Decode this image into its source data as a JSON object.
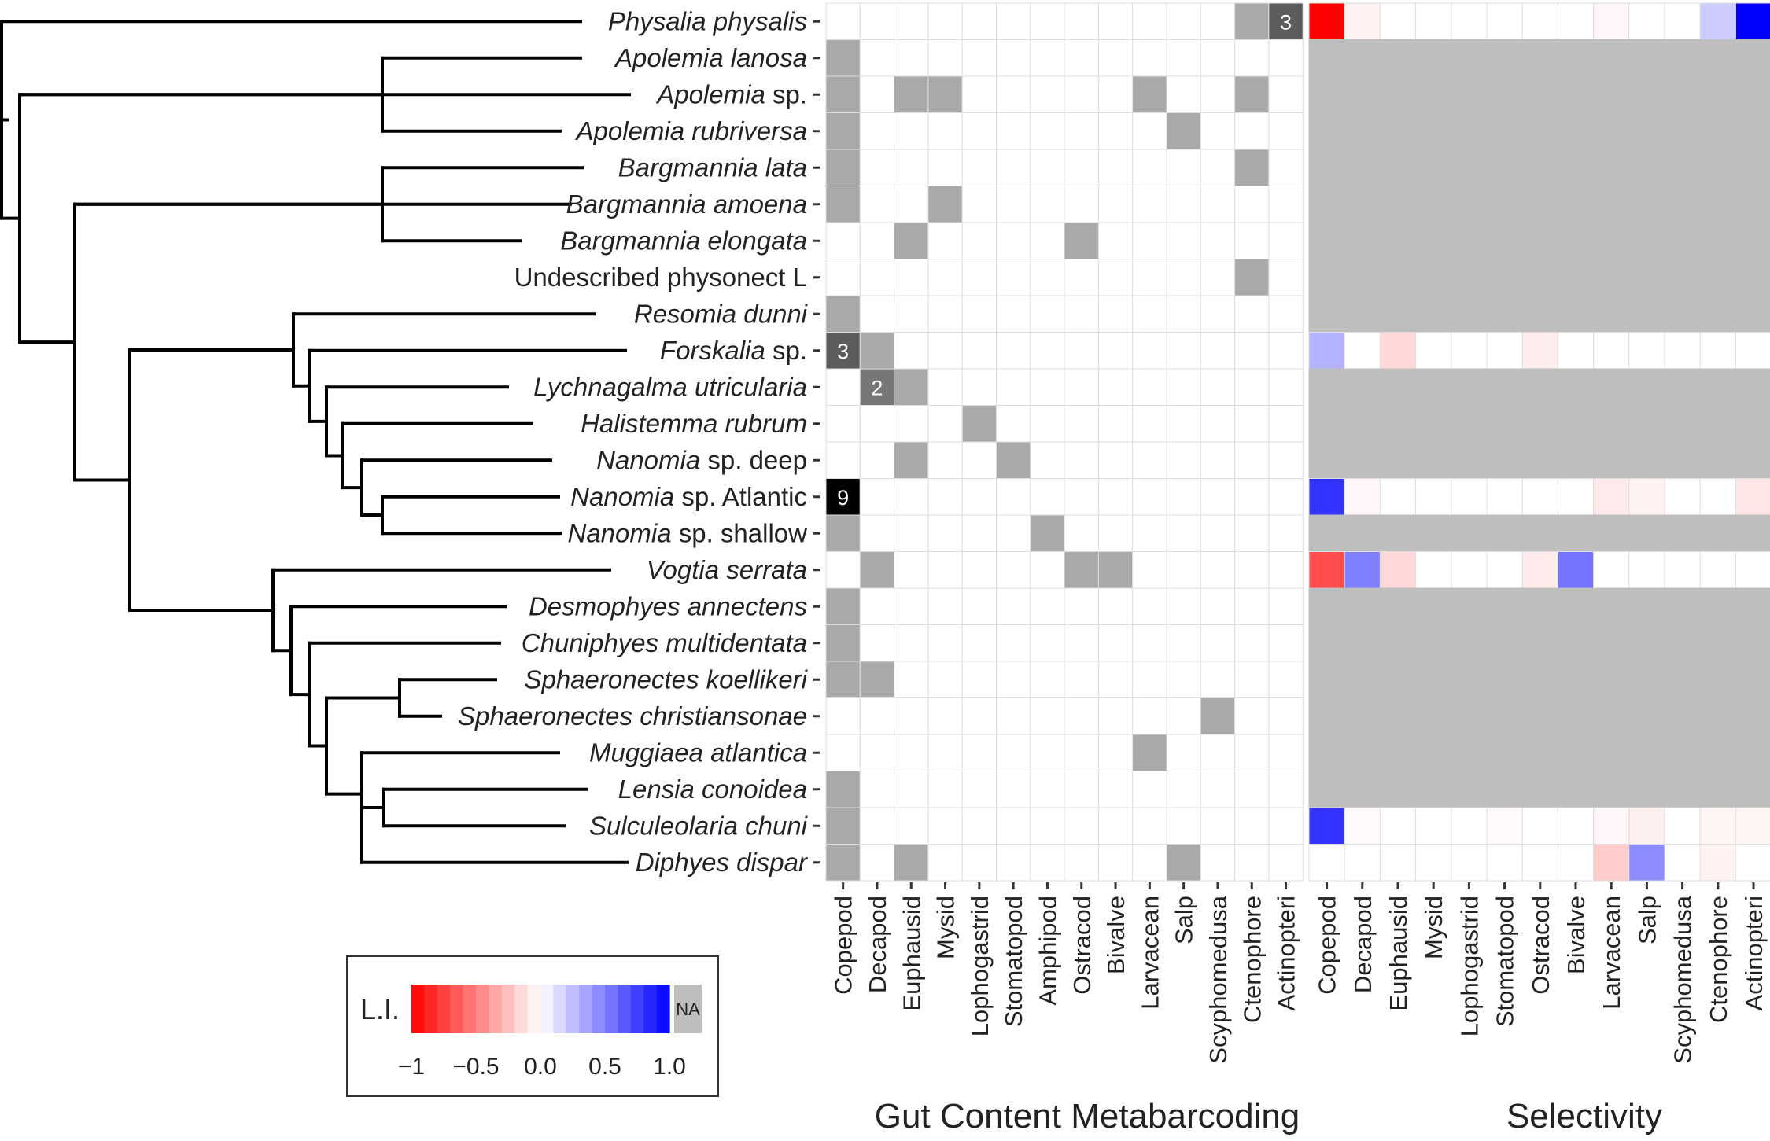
{
  "chart_data": [
    {
      "type": "heatmap",
      "title": "Gut Content Metabarcoding",
      "rows": [
        "Physalia physalis",
        "Apolemia lanosa",
        "Apolemia sp.",
        "Apolemia rubriversa",
        "Bargmannia lata",
        "Bargmannia amoena",
        "Bargmannia elongata",
        "Undescribed physonect L",
        "Resomia dunni",
        "Forskalia sp.",
        "Lychnagalma utricularia",
        "Halistemma rubrum",
        "Nanomia sp. deep",
        "Nanomia sp. Atlantic",
        "Nanomia sp. shallow",
        "Vogtia serrata",
        "Desmophyes annectens",
        "Chuniphyes multidentata",
        "Sphaeronectes koellikeri",
        "Sphaeronectes christiansonae",
        "Muggiaea atlantica",
        "Lensia conoidea",
        "Sulculeolaria chuni",
        "Diphyes dispar"
      ],
      "columns": [
        "Copepod",
        "Decapod",
        "Euphausid",
        "Mysid",
        "Lophogastrid",
        "Stomatopod",
        "Amphipod",
        "Ostracod",
        "Bivalve",
        "Larvacean",
        "Salp",
        "Scyphomedusa",
        "Ctenophore",
        "Actinopteri"
      ],
      "values": [
        [
          0,
          0,
          0,
          0,
          0,
          0,
          0,
          0,
          0,
          0,
          0,
          0,
          1,
          3
        ],
        [
          1,
          0,
          0,
          0,
          0,
          0,
          0,
          0,
          0,
          0,
          0,
          0,
          0,
          0
        ],
        [
          1,
          0,
          1,
          1,
          0,
          0,
          0,
          0,
          0,
          1,
          0,
          0,
          1,
          0
        ],
        [
          1,
          0,
          0,
          0,
          0,
          0,
          0,
          0,
          0,
          0,
          1,
          0,
          0,
          0
        ],
        [
          1,
          0,
          0,
          0,
          0,
          0,
          0,
          0,
          0,
          0,
          0,
          0,
          1,
          0
        ],
        [
          1,
          0,
          0,
          1,
          0,
          0,
          0,
          0,
          0,
          0,
          0,
          0,
          0,
          0
        ],
        [
          0,
          0,
          1,
          0,
          0,
          0,
          0,
          1,
          0,
          0,
          0,
          0,
          0,
          0
        ],
        [
          0,
          0,
          0,
          0,
          0,
          0,
          0,
          0,
          0,
          0,
          0,
          0,
          1,
          0
        ],
        [
          1,
          0,
          0,
          0,
          0,
          0,
          0,
          0,
          0,
          0,
          0,
          0,
          0,
          0
        ],
        [
          3,
          1,
          0,
          0,
          0,
          0,
          0,
          0,
          0,
          0,
          0,
          0,
          0,
          0
        ],
        [
          0,
          2,
          1,
          0,
          0,
          0,
          0,
          0,
          0,
          0,
          0,
          0,
          0,
          0
        ],
        [
          0,
          0,
          0,
          0,
          1,
          0,
          0,
          0,
          0,
          0,
          0,
          0,
          0,
          0
        ],
        [
          0,
          0,
          1,
          0,
          0,
          1,
          0,
          0,
          0,
          0,
          0,
          0,
          0,
          0
        ],
        [
          9,
          0,
          0,
          0,
          0,
          0,
          0,
          0,
          0,
          0,
          0,
          0,
          0,
          0
        ],
        [
          1,
          0,
          0,
          0,
          0,
          0,
          1,
          0,
          0,
          0,
          0,
          0,
          0,
          0
        ],
        [
          0,
          1,
          0,
          0,
          0,
          0,
          0,
          1,
          1,
          0,
          0,
          0,
          0,
          0
        ],
        [
          1,
          0,
          0,
          0,
          0,
          0,
          0,
          0,
          0,
          0,
          0,
          0,
          0,
          0
        ],
        [
          1,
          0,
          0,
          0,
          0,
          0,
          0,
          0,
          0,
          0,
          0,
          0,
          0,
          0
        ],
        [
          1,
          1,
          0,
          0,
          0,
          0,
          0,
          0,
          0,
          0,
          0,
          0,
          0,
          0
        ],
        [
          0,
          0,
          0,
          0,
          0,
          0,
          0,
          0,
          0,
          0,
          0,
          1,
          0,
          0
        ],
        [
          0,
          0,
          0,
          0,
          0,
          0,
          0,
          0,
          0,
          1,
          0,
          0,
          0,
          0
        ],
        [
          1,
          0,
          0,
          0,
          0,
          0,
          0,
          0,
          0,
          0,
          0,
          0,
          0,
          0
        ],
        [
          1,
          0,
          0,
          0,
          0,
          0,
          0,
          0,
          0,
          0,
          0,
          0,
          0,
          0
        ],
        [
          1,
          0,
          1,
          0,
          0,
          0,
          0,
          0,
          0,
          0,
          1,
          0,
          0,
          0
        ]
      ],
      "cell_labels": [
        {
          "row": "Physalia physalis",
          "column": "Actinopteri",
          "text": "3"
        },
        {
          "row": "Forskalia sp.",
          "column": "Copepod",
          "text": "3"
        },
        {
          "row": "Lychnagalma utricularia",
          "column": "Decapod",
          "text": "2"
        },
        {
          "row": "Nanomia sp. Atlantic",
          "column": "Copepod",
          "text": "9"
        }
      ],
      "colors": {
        "absent": "#ffffff",
        "count_1": "#a9a9a9",
        "count_2": "#777777",
        "count_3": "#5c5c5c",
        "count_9": "#000000",
        "grid": "#dedede"
      }
    },
    {
      "type": "heatmap",
      "title": "Selectivity",
      "rows": [
        "Physalia physalis",
        "Apolemia lanosa",
        "Apolemia sp.",
        "Apolemia rubriversa",
        "Bargmannia lata",
        "Bargmannia amoena",
        "Bargmannia elongata",
        "Undescribed physonect L",
        "Resomia dunni",
        "Forskalia sp.",
        "Lychnagalma utricularia",
        "Halistemma rubrum",
        "Nanomia sp. deep",
        "Nanomia sp. Atlantic",
        "Nanomia sp. shallow",
        "Vogtia serrata",
        "Desmophyes annectens",
        "Chuniphyes multidentata",
        "Sphaeronectes koellikeri",
        "Sphaeronectes christiansonae",
        "Muggiaea atlantica",
        "Lensia conoidea",
        "Sulculeolaria chuni",
        "Diphyes dispar"
      ],
      "columns": [
        "Copepod",
        "Decapod",
        "Euphausid",
        "Mysid",
        "Lophogastrid",
        "Stomatopod",
        "Ostracod",
        "Bivalve",
        "Larvacean",
        "Salp",
        "Scyphomedusa",
        "Ctenophore",
        "Actinopteri"
      ],
      "values": [
        [
          -1.0,
          -0.05,
          0,
          0,
          0,
          0,
          0,
          0,
          -0.03,
          0,
          0,
          0.2,
          1.0
        ],
        null,
        null,
        null,
        null,
        null,
        null,
        null,
        null,
        [
          0.3,
          0,
          -0.15,
          0,
          0,
          0,
          -0.07,
          0,
          0,
          0,
          0,
          0,
          0
        ],
        null,
        null,
        null,
        [
          0.8,
          -0.03,
          0,
          0,
          0,
          0,
          0,
          0,
          -0.08,
          -0.05,
          0,
          0,
          -0.1
        ],
        null,
        [
          -0.7,
          0.5,
          -0.15,
          0,
          0,
          0,
          -0.08,
          0.55,
          0,
          0,
          0,
          0,
          0
        ],
        null,
        null,
        null,
        null,
        null,
        null,
        [
          0.8,
          -0.02,
          0,
          0,
          0,
          -0.02,
          0,
          0,
          -0.03,
          -0.06,
          0,
          -0.04,
          -0.04
        ],
        [
          0,
          0,
          0,
          0,
          0,
          0,
          0,
          0,
          -0.2,
          0.45,
          0,
          -0.05,
          0
        ]
      ],
      "legend": {
        "title": "L.I.",
        "ticks": [
          "−1",
          "−0.5",
          "0.0",
          "0.5",
          "1.0"
        ],
        "na_label": "NA",
        "range": [
          -1,
          1
        ]
      },
      "colors": {
        "negative": "#ff0000",
        "zero": "#ffffff",
        "positive": "#0000ff",
        "na": "#bebebe",
        "grid": "#dedede"
      }
    }
  ],
  "tree": {
    "leaf_order": [
      "Physalia physalis",
      "Apolemia lanosa",
      "Apolemia sp.",
      "Apolemia rubriversa",
      "Bargmannia lata",
      "Bargmannia amoena",
      "Bargmannia elongata",
      "Undescribed physonect L",
      "Resomia dunni",
      "Forskalia sp.",
      "Lychnagalma utricularia",
      "Halistemma rubrum",
      "Nanomia sp. deep",
      "Nanomia sp. Atlantic",
      "Nanomia sp. shallow",
      "Vogtia serrata",
      "Desmophyes annectens",
      "Chuniphyes multidentata",
      "Sphaeronectes koellikeri",
      "Sphaeronectes christiansonae",
      "Muggiaea atlantica",
      "Lensia conoidea",
      "Sulculeolaria chuni",
      "Diphyes dispar"
    ],
    "labels": [
      {
        "italic": "Physalia physalis",
        "plain": ""
      },
      {
        "italic": "Apolemia lanosa",
        "plain": ""
      },
      {
        "italic": "Apolemia",
        "plain": " sp."
      },
      {
        "italic": "Apolemia rubriversa",
        "plain": ""
      },
      {
        "italic": "Bargmannia lata",
        "plain": ""
      },
      {
        "italic": "Bargmannia amoena",
        "plain": ""
      },
      {
        "italic": "Bargmannia elongata",
        "plain": ""
      },
      {
        "italic": "",
        "plain": "Undescribed physonect L"
      },
      {
        "italic": "Resomia dunni",
        "plain": ""
      },
      {
        "italic": "Forskalia",
        "plain": " sp."
      },
      {
        "italic": "Lychnagalma utricularia",
        "plain": ""
      },
      {
        "italic": "Halistemma rubrum",
        "plain": ""
      },
      {
        "italic": "Nanomia",
        "plain": " sp. deep"
      },
      {
        "italic": "Nanomia",
        "plain": " sp. Atlantic"
      },
      {
        "italic": "Nanomia",
        "plain": " sp. shallow"
      },
      {
        "italic": "Vogtia serrata",
        "plain": ""
      },
      {
        "italic": "Desmophyes annectens",
        "plain": ""
      },
      {
        "italic": "Chuniphyes multidentata",
        "plain": ""
      },
      {
        "italic": "Sphaeronectes koellikeri",
        "plain": ""
      },
      {
        "italic": "Sphaeronectes christiansonae",
        "plain": ""
      },
      {
        "italic": "Muggiaea atlantica",
        "plain": ""
      },
      {
        "italic": "Lensia conoidea",
        "plain": ""
      },
      {
        "italic": "Sulculeolaria chuni",
        "plain": ""
      },
      {
        "italic": "Diphyes dispar",
        "plain": ""
      }
    ]
  }
}
